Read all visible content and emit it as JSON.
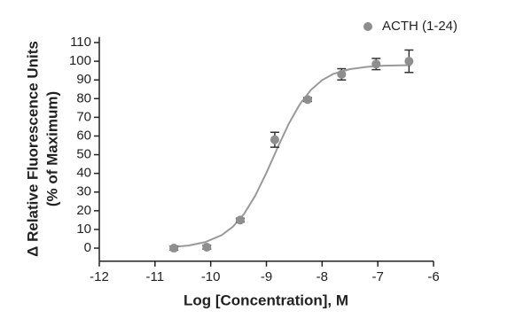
{
  "chart_data": {
    "type": "scatter",
    "y_label": [
      "Δ Relative Fluorescence Units",
      "(% of Maximum)"
    ],
    "x_label": "Log [Concentration], M",
    "xlim": [
      -12,
      -6
    ],
    "xticks": [
      -12,
      -11,
      -10,
      -9,
      -8,
      -7,
      -6
    ],
    "ylim": [
      -7,
      113
    ],
    "yticks": [
      0,
      10,
      20,
      30,
      40,
      50,
      60,
      70,
      80,
      90,
      100,
      110
    ],
    "legend": "top-right",
    "series": [
      {
        "name": "ACTH (1-24)",
        "color": "#8e8e8e",
        "x": [
          -10.66,
          -10.07,
          -9.47,
          -8.85,
          -8.26,
          -7.65,
          -7.03,
          -6.44
        ],
        "values": [
          0,
          0.5,
          15,
          58,
          79.5,
          93,
          98.5,
          100
        ],
        "errors": [
          1,
          1,
          1,
          4,
          1,
          3,
          3,
          6
        ]
      }
    ],
    "fit": {
      "color": "#999999",
      "x": [
        -10.7,
        -10.4,
        -10.1,
        -9.8,
        -9.6,
        -9.4,
        -9.2,
        -9.0,
        -8.8,
        -8.6,
        -8.4,
        -8.2,
        -8.0,
        -7.8,
        -7.5,
        -7.2,
        -6.9,
        -6.4
      ],
      "values": [
        0.6,
        1.4,
        3.2,
        7.0,
        11.5,
        18.4,
        28.1,
        40.3,
        53.7,
        66.5,
        77.0,
        84.7,
        89.9,
        93.2,
        95.8,
        97.0,
        97.6,
        97.9
      ]
    }
  }
}
